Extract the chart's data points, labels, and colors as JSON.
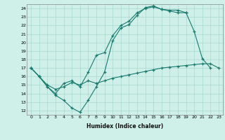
{
  "xlabel": "Humidex (Indice chaleur)",
  "xlim": [
    -0.5,
    23.5
  ],
  "ylim": [
    11.5,
    24.5
  ],
  "xticks": [
    0,
    1,
    2,
    3,
    4,
    5,
    6,
    7,
    8,
    9,
    10,
    11,
    12,
    13,
    14,
    15,
    16,
    17,
    18,
    19,
    20,
    21,
    22,
    23
  ],
  "yticks": [
    12,
    13,
    14,
    15,
    16,
    17,
    18,
    19,
    20,
    21,
    22,
    23,
    24
  ],
  "bg_color": "#cef0e8",
  "line_color": "#1a7a6e",
  "grid_color": "#aad8d0",
  "line1_x": [
    0,
    1,
    2,
    3,
    4,
    5,
    6,
    7,
    8,
    9,
    10,
    11,
    12,
    13,
    14,
    15,
    16,
    17,
    18,
    19,
    20,
    21,
    22
  ],
  "line1_y": [
    17.0,
    16.0,
    14.8,
    13.8,
    13.2,
    12.3,
    11.8,
    13.2,
    14.8,
    16.5,
    20.2,
    21.7,
    22.1,
    23.2,
    24.1,
    24.3,
    23.9,
    23.8,
    23.8,
    23.5,
    21.3,
    18.1,
    17.0
  ],
  "line2_x": [
    0,
    1,
    2,
    3,
    4,
    5,
    6,
    7,
    8,
    9,
    10,
    11,
    12,
    13,
    14,
    15,
    16,
    17,
    18,
    19
  ],
  "line2_y": [
    17.0,
    16.0,
    14.8,
    14.0,
    15.2,
    15.5,
    14.8,
    16.5,
    18.5,
    18.8,
    20.8,
    22.0,
    22.5,
    23.5,
    24.0,
    24.2,
    23.9,
    23.7,
    23.5,
    23.5
  ],
  "line3_x": [
    0,
    1,
    2,
    3,
    4,
    5,
    6,
    7,
    8,
    9,
    10,
    11,
    12,
    13,
    14,
    15,
    16,
    17,
    18,
    19,
    20,
    21,
    22,
    23
  ],
  "line3_y": [
    17.0,
    16.0,
    15.0,
    14.5,
    14.8,
    15.3,
    15.0,
    15.5,
    15.2,
    15.5,
    15.8,
    16.0,
    16.2,
    16.4,
    16.6,
    16.8,
    17.0,
    17.1,
    17.2,
    17.3,
    17.4,
    17.5,
    17.5,
    17.0
  ]
}
